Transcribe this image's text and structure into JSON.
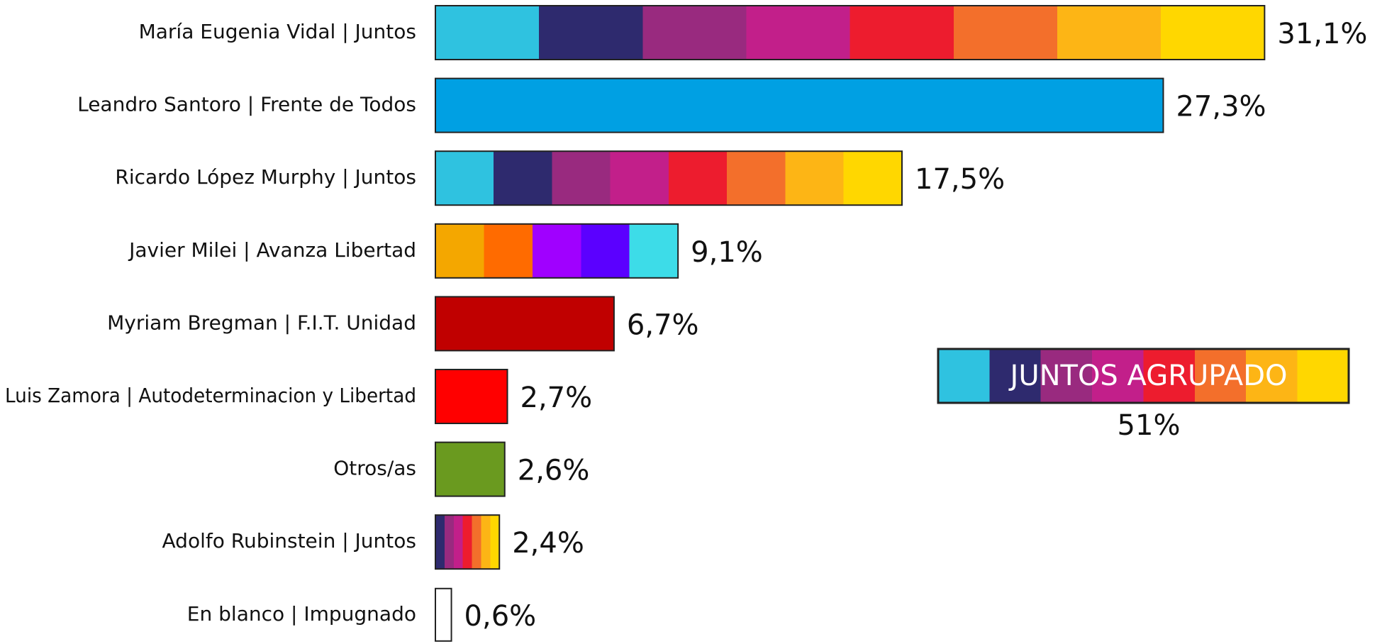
{
  "chart_data": {
    "type": "bar",
    "orientation": "horizontal",
    "categories": [
      "María Eugenia Vidal | Juntos",
      "Leandro Santoro | Frente de Todos",
      "Ricardo López Murphy | Juntos",
      "Javier Milei | Avanza Libertad",
      "Myriam Bregman | F.I.T. Unidad",
      "Luis Zamora | Autodeterminacion y Libertad",
      "Otros/as",
      "Adolfo Rubinstein | Juntos",
      "En blanco | Impugnado"
    ],
    "values": [
      31.1,
      27.3,
      17.5,
      9.1,
      6.7,
      2.7,
      2.6,
      2.4,
      0.6
    ],
    "value_labels": [
      "31,1%",
      "27,3%",
      "17,5%",
      "9,1%",
      "6,7%",
      "2,7%",
      "2,6%",
      "2,4%",
      "0,6%"
    ],
    "colors": [
      [
        "#2fc2e0",
        "#2e2a6e",
        "#992a7f",
        "#c21f8a",
        "#ed1c2e",
        "#f36f2b",
        "#fdb515",
        "#ffd700"
      ],
      "#00a0e3",
      [
        "#2fc2e0",
        "#2e2a6e",
        "#992a7f",
        "#c21f8a",
        "#ed1c2e",
        "#f36f2b",
        "#fdb515",
        "#ffd700"
      ],
      [
        "#f4a700",
        "#ff6b00",
        "#a000ff",
        "#5b00ff",
        "#3ddce8"
      ],
      "#c00000",
      "#ff0000",
      "#6a9a1f",
      [
        "#2e2a6e",
        "#992a7f",
        "#c21f8a",
        "#ed1c2e",
        "#f36f2b",
        "#fdb515",
        "#ffd700"
      ],
      "#ffffff"
    ],
    "annotation": {
      "text": "JUNTOS AGRUPADO",
      "value": 51,
      "value_label": "51%",
      "colors": [
        "#2fc2e0",
        "#2e2a6e",
        "#992a7f",
        "#c21f8a",
        "#ed1c2e",
        "#f36f2b",
        "#fdb515",
        "#ffd700"
      ]
    }
  }
}
